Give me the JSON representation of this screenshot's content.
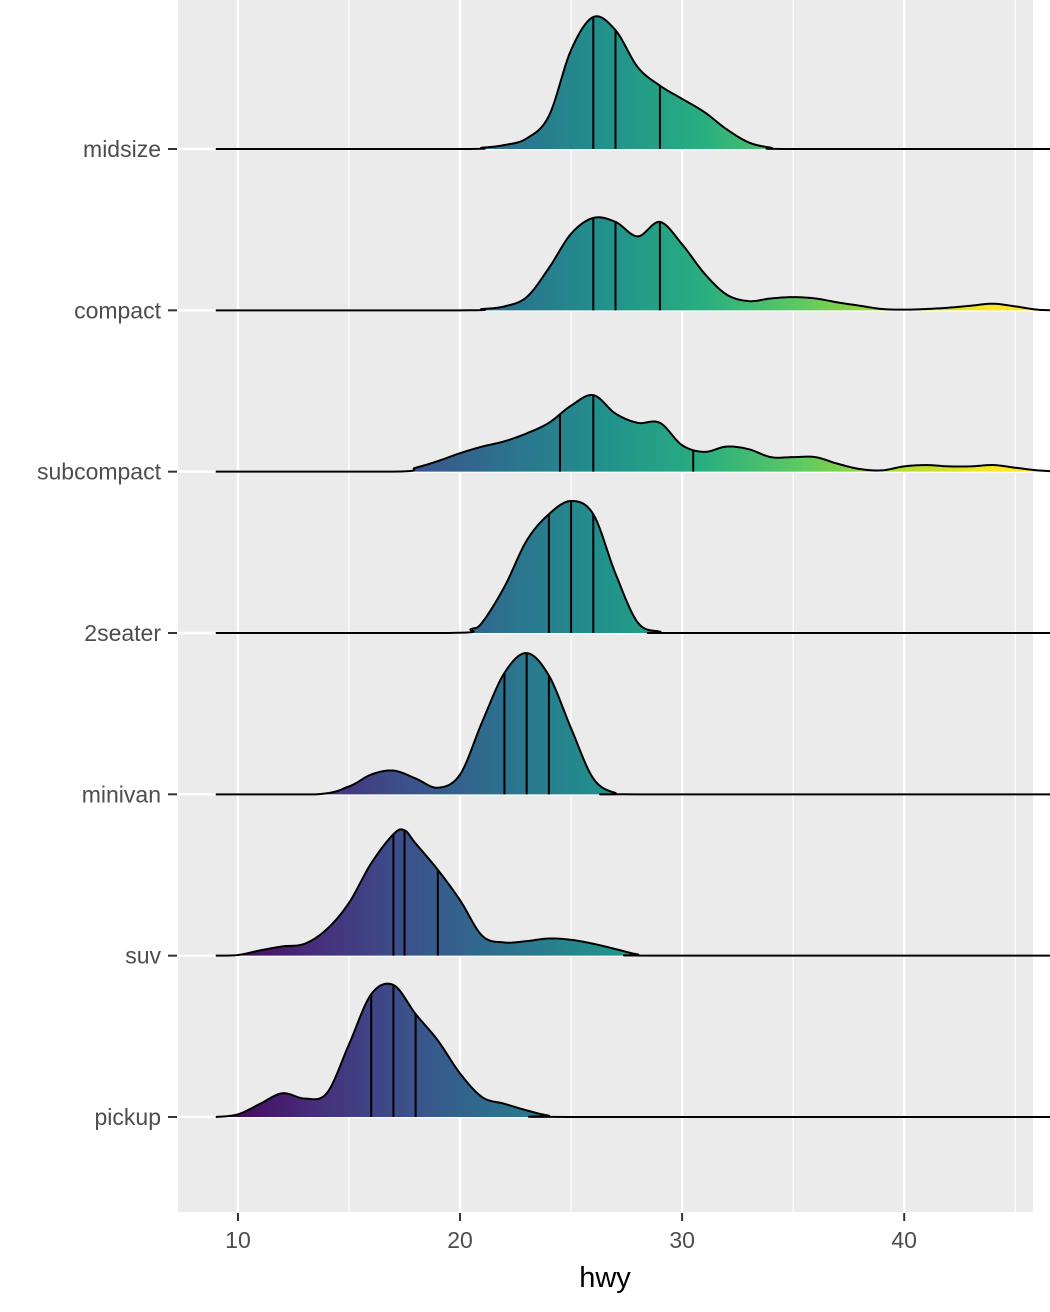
{
  "chart_data": {
    "type": "ridgeline",
    "xlabel": "hwy",
    "ylabel": "",
    "xlim": [
      7.3,
      45.8
    ],
    "x_ticks": [
      "10",
      "20",
      "30",
      "40"
    ],
    "x_tick_values": [
      10,
      20,
      30,
      40
    ],
    "density_range": [
      9,
      47
    ],
    "fill": "viridis gradient by hwy",
    "quantile_lines": true,
    "grid": true,
    "categories": [
      "midsize",
      "compact",
      "subcompact",
      "2seater",
      "minivan",
      "suv",
      "pickup"
    ],
    "series": [
      {
        "category": "midsize",
        "quantiles": [
          26,
          27,
          29
        ],
        "density": [
          [
            9,
            0
          ],
          [
            20,
            0
          ],
          [
            21,
            0.01
          ],
          [
            22,
            0.03
          ],
          [
            23,
            0.08
          ],
          [
            24,
            0.25
          ],
          [
            25,
            0.75
          ],
          [
            26,
            1.0
          ],
          [
            27,
            0.9
          ],
          [
            28,
            0.62
          ],
          [
            29,
            0.48
          ],
          [
            30,
            0.38
          ],
          [
            31,
            0.28
          ],
          [
            32,
            0.15
          ],
          [
            33,
            0.05
          ],
          [
            34,
            0.01
          ],
          [
            35,
            0
          ],
          [
            47,
            0
          ]
        ]
      },
      {
        "category": "compact",
        "quantiles": [
          26,
          27,
          29
        ],
        "density": [
          [
            9,
            0
          ],
          [
            20,
            0
          ],
          [
            21,
            0.01
          ],
          [
            22,
            0.03
          ],
          [
            23,
            0.1
          ],
          [
            24,
            0.32
          ],
          [
            25,
            0.58
          ],
          [
            26,
            0.7
          ],
          [
            27,
            0.67
          ],
          [
            28,
            0.56
          ],
          [
            29,
            0.67
          ],
          [
            30,
            0.5
          ],
          [
            31,
            0.28
          ],
          [
            32,
            0.12
          ],
          [
            33,
            0.07
          ],
          [
            34,
            0.09
          ],
          [
            35,
            0.1
          ],
          [
            36,
            0.09
          ],
          [
            37,
            0.06
          ],
          [
            38,
            0.035
          ],
          [
            39,
            0.01
          ],
          [
            40,
            0.005
          ],
          [
            41,
            0.01
          ],
          [
            42,
            0.02
          ],
          [
            43,
            0.035
          ],
          [
            44,
            0.05
          ],
          [
            45,
            0.03
          ],
          [
            46,
            0.005
          ],
          [
            47,
            0
          ]
        ]
      },
      {
        "category": "subcompact",
        "quantiles": [
          24.5,
          26,
          30.5
        ],
        "density": [
          [
            9,
            0
          ],
          [
            17,
            0
          ],
          [
            18,
            0.03
          ],
          [
            19,
            0.08
          ],
          [
            20,
            0.14
          ],
          [
            21,
            0.19
          ],
          [
            22,
            0.23
          ],
          [
            23,
            0.29
          ],
          [
            24,
            0.37
          ],
          [
            25,
            0.5
          ],
          [
            26,
            0.58
          ],
          [
            27,
            0.44
          ],
          [
            28,
            0.37
          ],
          [
            29,
            0.37
          ],
          [
            30,
            0.2
          ],
          [
            31,
            0.15
          ],
          [
            32,
            0.19
          ],
          [
            33,
            0.17
          ],
          [
            34,
            0.11
          ],
          [
            35,
            0.11
          ],
          [
            36,
            0.11
          ],
          [
            37,
            0.06
          ],
          [
            38,
            0.02
          ],
          [
            39,
            0.01
          ],
          [
            40,
            0.04
          ],
          [
            41,
            0.05
          ],
          [
            42,
            0.04
          ],
          [
            43,
            0.04
          ],
          [
            44,
            0.05
          ],
          [
            45,
            0.03
          ],
          [
            46,
            0.01
          ],
          [
            47,
            0
          ]
        ]
      },
      {
        "category": "2seater",
        "quantiles": [
          24,
          25,
          26
        ],
        "density": [
          [
            9,
            0
          ],
          [
            19.5,
            0
          ],
          [
            20.5,
            0.03
          ],
          [
            21,
            0.08
          ],
          [
            22,
            0.35
          ],
          [
            23,
            0.7
          ],
          [
            24,
            0.9
          ],
          [
            25,
            1.0
          ],
          [
            26,
            0.9
          ],
          [
            27,
            0.45
          ],
          [
            28,
            0.08
          ],
          [
            29,
            0.01
          ],
          [
            30,
            0
          ],
          [
            47,
            0
          ]
        ]
      },
      {
        "category": "minivan",
        "quantiles": [
          22,
          23,
          24
        ],
        "density": [
          [
            9,
            0
          ],
          [
            13.5,
            0
          ],
          [
            15,
            0.06
          ],
          [
            16,
            0.15
          ],
          [
            17,
            0.18
          ],
          [
            18,
            0.12
          ],
          [
            19,
            0.05
          ],
          [
            20,
            0.15
          ],
          [
            21,
            0.55
          ],
          [
            22,
            0.92
          ],
          [
            23,
            1.07
          ],
          [
            24,
            0.9
          ],
          [
            25,
            0.5
          ],
          [
            26,
            0.12
          ],
          [
            27,
            0.01
          ],
          [
            28,
            0
          ],
          [
            47,
            0
          ]
        ]
      },
      {
        "category": "suv",
        "quantiles": [
          17,
          17.5,
          19
        ],
        "density": [
          [
            9,
            0
          ],
          [
            10,
            0.005
          ],
          [
            11,
            0.04
          ],
          [
            12,
            0.07
          ],
          [
            13,
            0.09
          ],
          [
            14,
            0.2
          ],
          [
            15,
            0.4
          ],
          [
            16,
            0.7
          ],
          [
            17,
            0.92
          ],
          [
            17.5,
            0.95
          ],
          [
            18,
            0.85
          ],
          [
            19,
            0.65
          ],
          [
            20,
            0.42
          ],
          [
            21,
            0.15
          ],
          [
            22,
            0.1
          ],
          [
            23,
            0.11
          ],
          [
            24,
            0.13
          ],
          [
            25,
            0.12
          ],
          [
            26,
            0.09
          ],
          [
            27,
            0.05
          ],
          [
            28,
            0.01
          ],
          [
            29,
            0
          ],
          [
            47,
            0
          ]
        ]
      },
      {
        "category": "pickup",
        "quantiles": [
          16,
          17,
          18
        ],
        "density": [
          [
            9,
            0
          ],
          [
            10,
            0.02
          ],
          [
            11,
            0.1
          ],
          [
            12,
            0.18
          ],
          [
            13,
            0.14
          ],
          [
            14,
            0.18
          ],
          [
            15,
            0.55
          ],
          [
            16,
            0.93
          ],
          [
            17,
            1.0
          ],
          [
            18,
            0.78
          ],
          [
            19,
            0.58
          ],
          [
            20,
            0.33
          ],
          [
            21,
            0.15
          ],
          [
            22,
            0.1
          ],
          [
            23,
            0.05
          ],
          [
            24,
            0.01
          ],
          [
            25,
            0
          ],
          [
            47,
            0
          ]
        ]
      }
    ]
  }
}
